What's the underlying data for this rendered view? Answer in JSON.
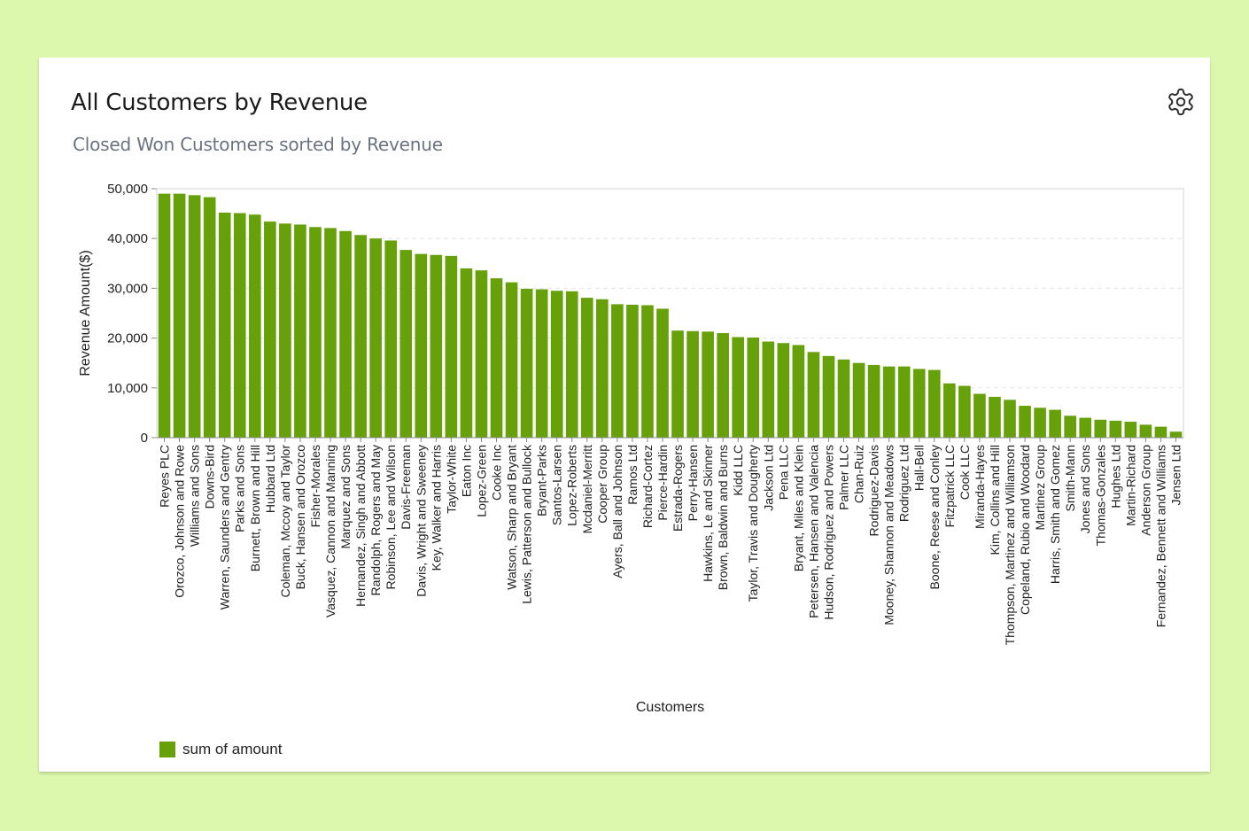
{
  "card": {
    "title": "All Customers by Revenue",
    "subtitle": "Closed Won Customers sorted by Revenue"
  },
  "icons": {
    "settings": "gear-icon"
  },
  "colors": {
    "background": "#dcf8ad",
    "bar": "#66a10a"
  },
  "chart_data": {
    "type": "bar",
    "xlabel": "Customers",
    "ylabel": "Revenue Amount($)",
    "ylim": [
      0,
      50000
    ],
    "yticks": [
      "0",
      "10,000",
      "20,000",
      "30,000",
      "40,000",
      "50,000"
    ],
    "ytick_values": [
      0,
      10000,
      20000,
      30000,
      40000,
      50000
    ],
    "grid": "horizontal dashed",
    "legend": {
      "position": "bottom-left",
      "label": "sum of amount"
    },
    "categories": [
      "Reyes PLC",
      "Orozco, Johnson and Rowe",
      "Williams and Sons",
      "Downs-Bird",
      "Warren, Saunders and Gentry",
      "Parks and Sons",
      "Burnett, Brown and Hill",
      "Hubbard Ltd",
      "Coleman, Mccoy and Taylor",
      "Buck, Hansen and Orozco",
      "Fisher-Morales",
      "Vasquez, Cannon and Manning",
      "Marquez and Sons",
      "Hernandez, Singh and Abbott",
      "Randolph, Rogers and May",
      "Robinson, Lee and Wilson",
      "Davis-Freeman",
      "Davis, Wright and Sweeney",
      "Key, Walker and Harris",
      "Taylor-White",
      "Eaton Inc",
      "Lopez-Green",
      "Cooke Inc",
      "Watson, Sharp and Bryant",
      "Lewis, Patterson and Bullock",
      "Bryant-Parks",
      "Santos-Larsen",
      "Lopez-Roberts",
      "Mcdaniel-Merritt",
      "Cooper Group",
      "Ayers, Ball and Johnson",
      "Ramos Ltd",
      "Richard-Cortez",
      "Pierce-Hardin",
      "Estrada-Rogers",
      "Perry-Hansen",
      "Hawkins, Le and Skinner",
      "Brown, Baldwin and Burns",
      "Kidd LLC",
      "Taylor, Travis and Dougherty",
      "Jackson Ltd",
      "Pena LLC",
      "Bryant, Miles and Klein",
      "Petersen, Hansen and Valencia",
      "Hudson, Rodriguez and Powers",
      "Palmer LLC",
      "Chan-Ruiz",
      "Rodriguez-Davis",
      "Mooney, Shannon and Meadows",
      "Rodriguez Ltd",
      "Hall-Bell",
      "Boone, Reese and Conley",
      "Fitzpatrick LLC",
      "Cook LLC",
      "Miranda-Hayes",
      "Kim, Collins and Hill",
      "Thompson, Martinez and Williamson",
      "Copeland, Rubio and Woodard",
      "Martinez Group",
      "Harris, Smith and Gomez",
      "Smith-Mann",
      "Jones and Sons",
      "Thomas-Gonzales",
      "Hughes Ltd",
      "Martin-Richard",
      "Anderson Group",
      "Fernandez, Bennett and Williams",
      "Jensen Ltd"
    ],
    "values": [
      49000,
      49000,
      48700,
      48300,
      45200,
      45100,
      44800,
      43400,
      43000,
      42800,
      42300,
      42100,
      41500,
      40700,
      40000,
      39600,
      37700,
      36900,
      36700,
      36500,
      34000,
      33600,
      32000,
      31200,
      29900,
      29800,
      29500,
      29400,
      28100,
      27800,
      26800,
      26700,
      26600,
      25900,
      21500,
      21400,
      21300,
      21000,
      20200,
      20100,
      19300,
      19000,
      18600,
      17200,
      16400,
      15700,
      15000,
      14600,
      14300,
      14300,
      13800,
      13600,
      10900,
      10400,
      8800,
      8200,
      7600,
      6400,
      6000,
      5600,
      4400,
      4000,
      3600,
      3400,
      3200,
      2600,
      2200,
      1200
    ]
  }
}
